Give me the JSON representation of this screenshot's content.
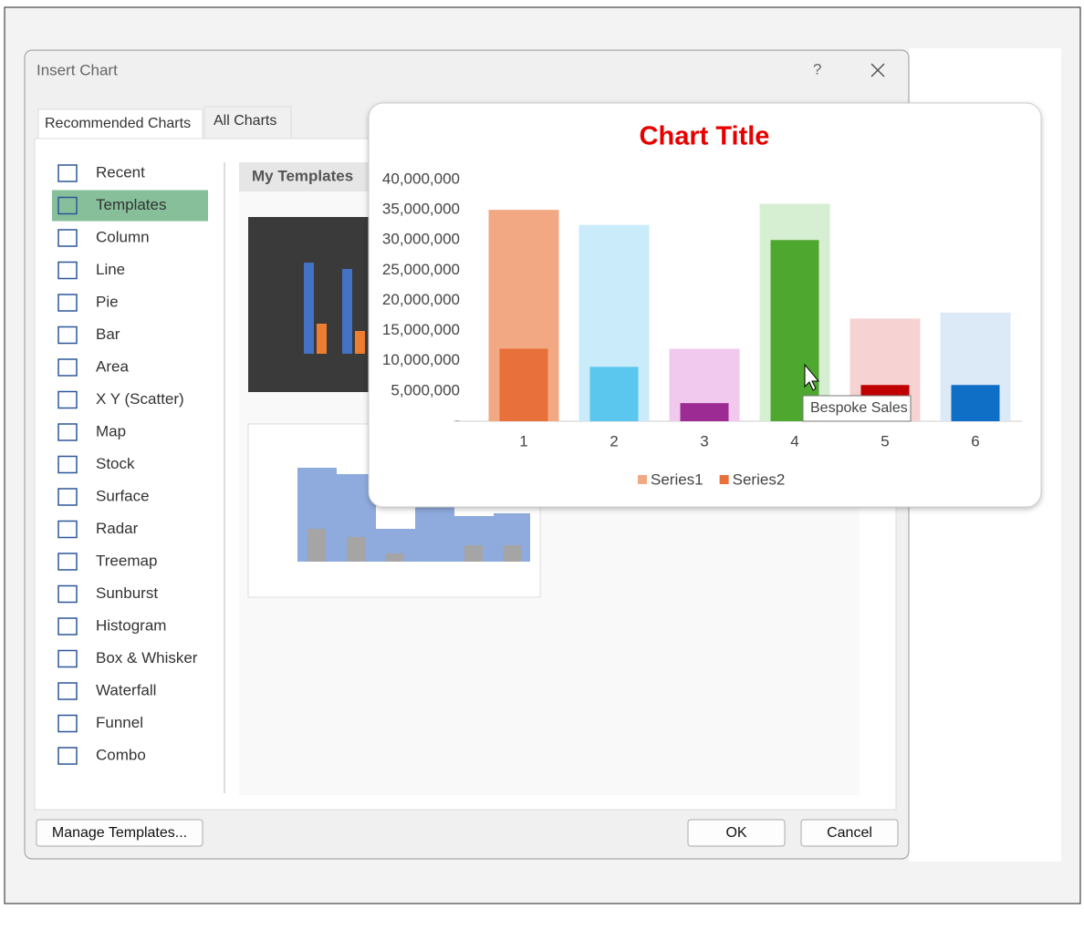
{
  "dialog": {
    "title": "Insert Chart",
    "help": "?",
    "tabs": [
      "Recommended Charts",
      "All Charts"
    ],
    "chart_types": [
      "Recent",
      "Templates",
      "Column",
      "Line",
      "Pie",
      "Bar",
      "Area",
      "X Y (Scatter)",
      "Map",
      "Stock",
      "Surface",
      "Radar",
      "Treemap",
      "Sunburst",
      "Histogram",
      "Box & Whisker",
      "Waterfall",
      "Funnel",
      "Combo"
    ],
    "selected_type": "Templates",
    "section_title": "My Templates",
    "buttons": {
      "manage": "Manage Templates...",
      "ok": "OK",
      "cancel": "Cancel"
    }
  },
  "chart_data": {
    "type": "bar",
    "title": "Chart Title",
    "categories": [
      "1",
      "2",
      "3",
      "4",
      "5",
      "6"
    ],
    "series": [
      {
        "name": "Series1",
        "color": "#f2a983",
        "point_colors": [
          "#f2a983",
          "#c9ebfa",
          "#f1c9ee",
          "#d6efd2",
          "#f6d3d2",
          "#dce9f7"
        ],
        "values": [
          35000000,
          32500000,
          12000000,
          36000000,
          17000000,
          18000000
        ]
      },
      {
        "name": "Series2",
        "color": "#e8703a",
        "point_colors": [
          "#e8703a",
          "#5bc7ef",
          "#9c2c94",
          "#4ea72e",
          "#c00000",
          "#0f6fc6"
        ],
        "values": [
          12000000,
          9000000,
          3000000,
          30000000,
          6000000,
          6000000
        ]
      }
    ],
    "ylim": [
      0,
      40000000
    ],
    "yticks": [
      {
        "value": 0,
        "label": "-"
      },
      {
        "value": 5000000,
        "label": "5,000,000"
      },
      {
        "value": 10000000,
        "label": "10,000,000"
      },
      {
        "value": 15000000,
        "label": "15,000,000"
      },
      {
        "value": 20000000,
        "label": "20,000,000"
      },
      {
        "value": 25000000,
        "label": "25,000,000"
      },
      {
        "value": 30000000,
        "label": "30,000,000"
      },
      {
        "value": 35000000,
        "label": "35,000,000"
      },
      {
        "value": 40000000,
        "label": "40,000,000"
      }
    ],
    "tooltip": "Bespoke Sales"
  }
}
